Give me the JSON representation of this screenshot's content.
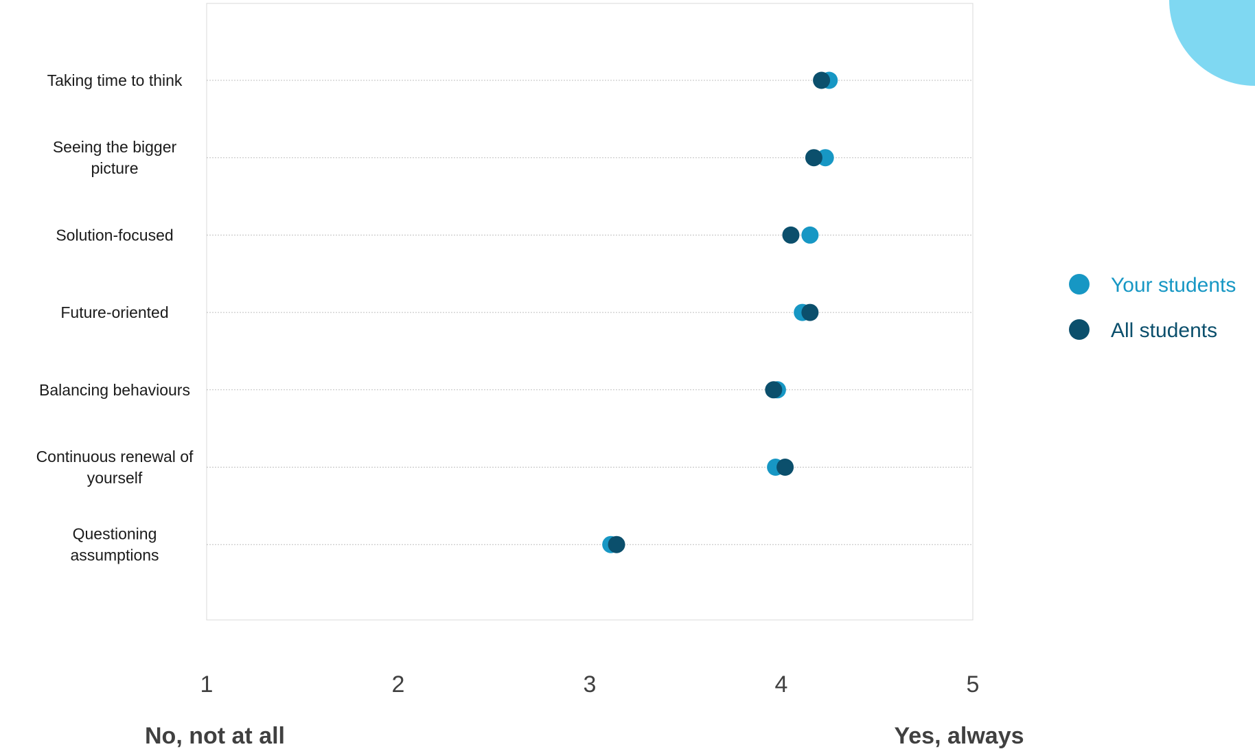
{
  "chart_data": {
    "type": "scatter",
    "orientation": "horizontal-dot-plot",
    "categories": [
      "Taking time to think",
      "Seeing the bigger picture",
      "Solution-focused",
      "Future-oriented",
      "Balancing behaviours",
      "Continuous renewal of yourself",
      "Questioning assumptions"
    ],
    "category_lines": [
      [
        "Taking time to think"
      ],
      [
        "Seeing the bigger",
        "picture"
      ],
      [
        "Solution-focused"
      ],
      [
        "Future-oriented"
      ],
      [
        "Balancing behaviours"
      ],
      [
        "Continuous renewal of",
        "yourself"
      ],
      [
        "Questioning",
        "assumptions"
      ]
    ],
    "series": [
      {
        "name": "Your students",
        "color": "#1797c4",
        "values": [
          4.25,
          4.23,
          4.15,
          4.11,
          3.98,
          3.97,
          3.11
        ]
      },
      {
        "name": "All students",
        "color": "#0b4f6c",
        "values": [
          4.21,
          4.17,
          4.05,
          4.15,
          3.96,
          4.02,
          3.14
        ]
      }
    ],
    "xlim": [
      1,
      5
    ],
    "xticks": [
      "1",
      "2",
      "3",
      "4",
      "5"
    ],
    "x_anchor_labels": {
      "low": "No, not at all",
      "high": "Yes, always"
    },
    "gridlines": "horizontal-dotted",
    "legend_position": "right"
  },
  "decoration": {
    "corner_circle_color": "#7fd8f2"
  }
}
